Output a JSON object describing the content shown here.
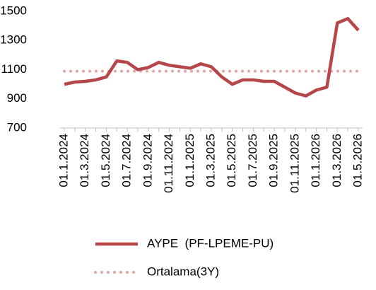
{
  "chart_data": {
    "type": "line",
    "categories": [
      "01.1.2024",
      null,
      "01.3.2024",
      null,
      "01.5.2024",
      null,
      "01.7.2024",
      null,
      "01.9.2024",
      null,
      "01.11.2024",
      null,
      "01.1.2025",
      null,
      "01.3.2025",
      null,
      "01.5.2025",
      null,
      "01.7.2025",
      null,
      "01.9.2025",
      null,
      "01.11.2025",
      null,
      "01.1.2026",
      null,
      "01.3.2026",
      null,
      "01.5.2026"
    ],
    "series": [
      {
        "name": "AYPE  (PF-LPEME-PU)",
        "color": "#b5474b",
        "style": "solid",
        "values": [
          1000,
          1015,
          1020,
          1030,
          1050,
          1160,
          1150,
          1100,
          1115,
          1150,
          1130,
          1120,
          1110,
          1140,
          1120,
          1050,
          1000,
          1030,
          1030,
          1020,
          1020,
          980,
          940,
          920,
          960,
          980,
          1420,
          1450,
          1370
        ]
      },
      {
        "name": "Ortalama(3Y)",
        "color": "#e3a3a3",
        "style": "dotted",
        "values": [
          1090,
          1090,
          1090,
          1090,
          1090,
          1090,
          1090,
          1090,
          1090,
          1090,
          1090,
          1090,
          1090,
          1090,
          1090,
          1090,
          1090,
          1090,
          1090,
          1090,
          1090,
          1090,
          1090,
          1090,
          1090,
          1090,
          1090,
          1090,
          1090
        ]
      }
    ],
    "ylim": [
      700,
      1500
    ],
    "yticks": [
      700,
      900,
      1100,
      1300,
      1500
    ],
    "grid": false,
    "legend": "bottom"
  }
}
